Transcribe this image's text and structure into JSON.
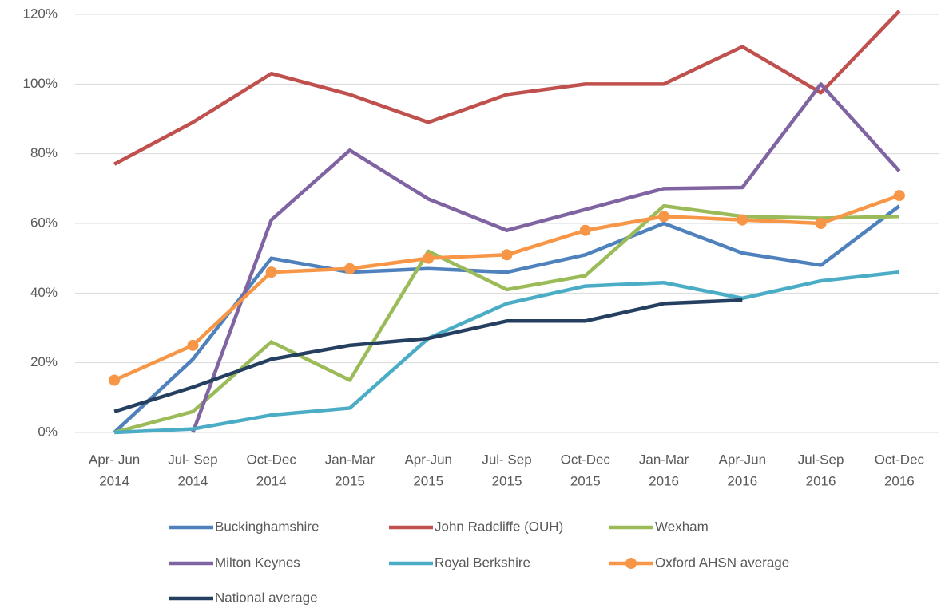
{
  "chart_data": {
    "type": "line",
    "categories": [
      [
        "Apr- Jun",
        "2014"
      ],
      [
        "Jul- Sep",
        "2014"
      ],
      [
        "Oct-Dec",
        "2014"
      ],
      [
        "Jan-Mar",
        "2015"
      ],
      [
        "Apr-Jun",
        "2015"
      ],
      [
        "Jul- Sep",
        "2015"
      ],
      [
        "Oct-Dec",
        "2015"
      ],
      [
        "Jan-Mar",
        "2016"
      ],
      [
        "Apr-Jun",
        "2016"
      ],
      [
        "Jul-Sep",
        "2016"
      ],
      [
        "Oct-Dec",
        "2016"
      ]
    ],
    "series": [
      {
        "name": "Buckinghamshire",
        "color": "#4f81bd",
        "values": [
          0,
          21,
          50,
          46,
          47,
          46,
          51,
          60,
          51.5,
          48,
          65
        ]
      },
      {
        "name": "John Radcliffe (OUH)",
        "color": "#c0504d",
        "values": [
          77,
          89,
          103,
          97,
          89,
          97,
          100,
          100,
          110.7,
          97.5,
          121
        ]
      },
      {
        "name": "Wexham",
        "color": "#9bbb59",
        "values": [
          0,
          6,
          26,
          15,
          52,
          41,
          45,
          65,
          62,
          61.5,
          62
        ]
      },
      {
        "name": "Milton Keynes",
        "color": "#8064a2",
        "values": [
          null,
          0,
          61,
          81,
          67,
          58,
          64,
          70,
          70.3,
          100,
          75
        ]
      },
      {
        "name": "Royal Berkshire",
        "color": "#4bacc6",
        "values": [
          0,
          1,
          5,
          7,
          27,
          37,
          42,
          43,
          38.5,
          43.5,
          46
        ]
      },
      {
        "name": "Oxford AHSN average",
        "color": "#f79646",
        "marker": "circle",
        "values": [
          15,
          25,
          46,
          47,
          50,
          51,
          58,
          62,
          61,
          60,
          68
        ]
      },
      {
        "name": "National average",
        "color": "#243f60",
        "values": [
          6,
          13,
          21,
          25,
          27,
          32,
          32,
          37,
          38,
          null,
          null
        ]
      }
    ],
    "ylim": [
      0,
      120
    ],
    "yticks": [
      {
        "value": 0,
        "label": "0%"
      },
      {
        "value": 20,
        "label": "20%"
      },
      {
        "value": 40,
        "label": "40%"
      },
      {
        "value": 60,
        "label": "60%"
      },
      {
        "value": 80,
        "label": "80%"
      },
      {
        "value": 100,
        "label": "100%"
      },
      {
        "value": 120,
        "label": "120%"
      }
    ],
    "grid": true,
    "legend": "bottom"
  }
}
